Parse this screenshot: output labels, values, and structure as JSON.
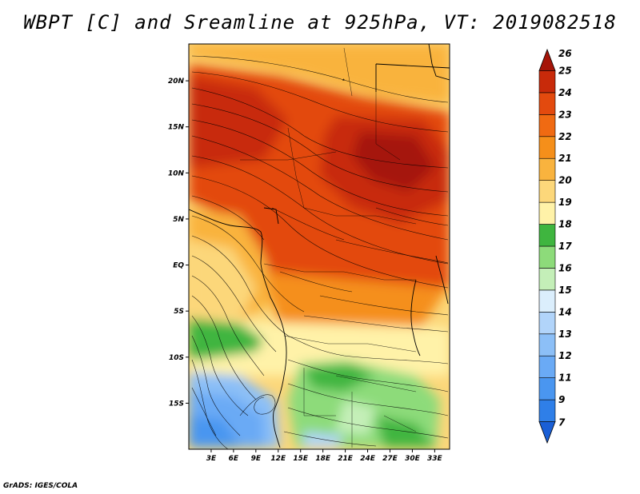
{
  "title": "WBPT [C] and Sreamline at 925hPa, VT: 2019082518",
  "footer": "GrADS: IGES/COLA",
  "chart_data": {
    "type": "heatmap",
    "variable": "WBPT",
    "units": "C",
    "pressure_level": "925hPa",
    "valid_time": "2019082518",
    "lon_range": [
      0,
      35
    ],
    "lat_range": [
      -20,
      24
    ],
    "x_ticks": [
      "3E",
      "6E",
      "9E",
      "12E",
      "15E",
      "18E",
      "21E",
      "24E",
      "27E",
      "30E",
      "33E"
    ],
    "x_tick_values": [
      3,
      6,
      9,
      12,
      15,
      18,
      21,
      24,
      27,
      30,
      33
    ],
    "y_ticks": [
      "20N",
      "15N",
      "10N",
      "5N",
      "EQ",
      "5S",
      "10S",
      "15S"
    ],
    "y_tick_values": [
      20,
      15,
      10,
      5,
      0,
      -5,
      -10,
      -15
    ],
    "colorbar": {
      "labels": [
        "7",
        "9",
        "11",
        "12",
        "13",
        "14",
        "15",
        "16",
        "17",
        "18",
        "19",
        "20",
        "21",
        "22",
        "23",
        "24",
        "25",
        "26"
      ],
      "colors": [
        "#1a5fd6",
        "#2f7fe8",
        "#4a96f0",
        "#6aaaf5",
        "#8cbff7",
        "#b1d4fa",
        "#dbeefc",
        "#c4efb8",
        "#8ddb7a",
        "#3fb53f",
        "#fff2a8",
        "#fcd77a",
        "#f9b33e",
        "#f58f1a",
        "#f06a12",
        "#e34a0e",
        "#c82a0a",
        "#a51408"
      ]
    }
  },
  "color_scale": {
    "n7": "#1a5fd6",
    "n9": "#2f7fe8",
    "n11": "#4a96f0",
    "n12": "#6aaaf5",
    "n13": "#8cbff7",
    "n14": "#b1d4fa",
    "n15": "#dbeefc",
    "n16": "#c4efb8",
    "n17": "#8ddb7a",
    "n18": "#3fb53f",
    "n19": "#fff2a8",
    "n20": "#fcd77a",
    "n21": "#f9b33e",
    "n22": "#f58f1a",
    "n23": "#f06a12",
    "n24": "#e34a0e",
    "n25": "#c82a0a",
    "n26": "#a51408"
  }
}
